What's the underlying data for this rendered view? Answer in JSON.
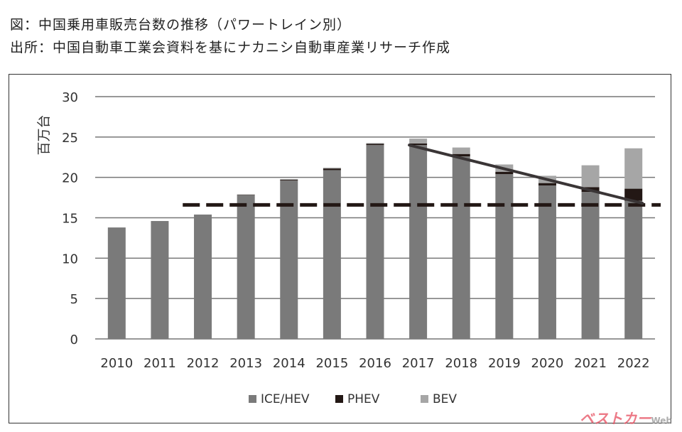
{
  "header": {
    "line1": "図：中国乗用車販売台数の推移（パワートレイン別）",
    "line2": "出所：中国自動車工業会資料を基にナカニシ自動車産業リサーチ作成"
  },
  "watermark": {
    "text": "ベストカー",
    "sub": "Web"
  },
  "chart_data": {
    "type": "bar",
    "stacked": true,
    "ylabel": "百万台",
    "ylim": [
      0,
      30
    ],
    "yticks": [
      0,
      5,
      10,
      15,
      20,
      25,
      30
    ],
    "grid": true,
    "legend": "bottom",
    "categories": [
      "2010",
      "2011",
      "2012",
      "2013",
      "2014",
      "2015",
      "2016",
      "2017",
      "2018",
      "2019",
      "2020",
      "2021",
      "2022"
    ],
    "series": [
      {
        "name": "ICE/HEV",
        "color": "#7a7a7a",
        "values": [
          13.8,
          14.6,
          15.4,
          17.8,
          19.6,
          20.9,
          24.0,
          24.0,
          22.6,
          20.4,
          19.0,
          18.2,
          17.1
        ]
      },
      {
        "name": "PHEV",
        "color": "#231815",
        "values": [
          0.0,
          0.0,
          0.0,
          0.05,
          0.1,
          0.2,
          0.15,
          0.2,
          0.3,
          0.3,
          0.3,
          0.6,
          1.5
        ]
      },
      {
        "name": "BEV",
        "color": "#a6a6a6",
        "values": [
          0.0,
          0.0,
          0.0,
          0.05,
          0.1,
          0.1,
          0.1,
          0.6,
          0.8,
          0.9,
          0.9,
          2.7,
          5.0
        ]
      }
    ],
    "annotations": [
      {
        "type": "dashed-hline",
        "y": 16.6,
        "x_from": "2012",
        "x_to": "2022"
      },
      {
        "type": "trend-line",
        "from": {
          "x": "2017",
          "y": 24.0
        },
        "to": {
          "x": "2022",
          "y": 16.8
        }
      }
    ]
  }
}
